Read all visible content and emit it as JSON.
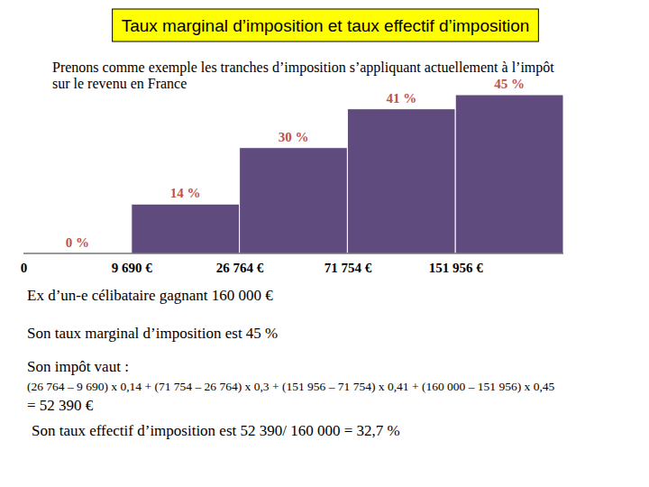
{
  "chart_data": {
    "type": "bar",
    "title": "Taux marginal d’imposition et taux effectif d’imposition",
    "subtitle": [
      "Prenons comme exemple les tranches d’imposition s’appliquant actuellement à l’impôt",
      "sur le revenu en France"
    ],
    "categories": [
      "0",
      "9 690 €",
      "26 764 €",
      "71 754 €",
      "151 956 €"
    ],
    "values": [
      0,
      14,
      30,
      41,
      45
    ],
    "value_labels": [
      "0 %",
      "14 %",
      "30 %",
      "41 %",
      "45 %"
    ],
    "data_labels": true,
    "color": "#5f4b7d",
    "ylim": [
      0,
      45
    ],
    "tick_labels": "x",
    "grid": false,
    "annotations": [
      "Ex d’un-e célibataire gagnant 160 000 €",
      "Son taux marginal d’imposition est 45 %",
      "Son impôt vaut :",
      "(26 764 – 9 690) x 0,14 + (71 754 – 26 764) x 0,3 + (151 956 – 71 754) x 0,41 + (160 000 – 151 956) x 0,45",
      "= 52 390 €",
      "Son taux effectif d’imposition est 52 390/ 160 000 = 32,7 %"
    ]
  }
}
